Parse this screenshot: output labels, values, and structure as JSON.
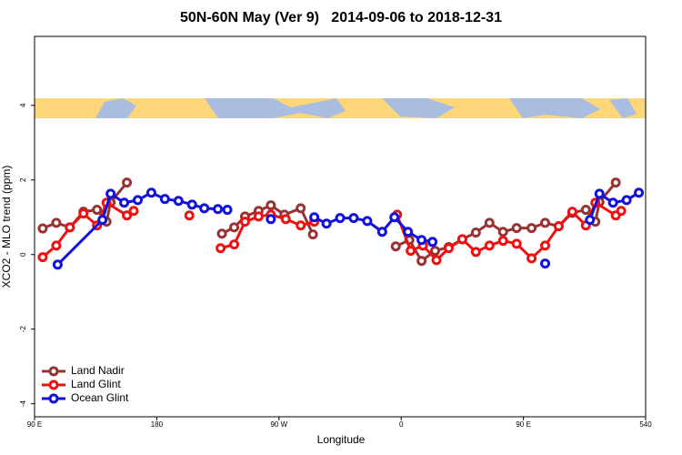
{
  "chart_data": {
    "type": "line",
    "title": "50N-60N May (Ver 9)   2014-09-06 to 2018-12-31",
    "x_label": "Longitude",
    "y_label": "XCO2 - MLO trend (ppm)",
    "xlim": [
      90,
      540
    ],
    "xticks": [
      {
        "value": 90,
        "label": "90 E"
      },
      180,
      {
        "value": 270,
        "label": "90 W"
      },
      {
        "value": 360,
        "label": "0"
      },
      {
        "value": 450,
        "label": "90 E"
      },
      540
    ],
    "ylim": [
      -4.35,
      5.85
    ],
    "yticks": [
      -4,
      -2,
      0,
      2,
      4
    ],
    "legend": "bottom-left",
    "series": [
      {
        "name": "Land Nadir",
        "color": "#993333",
        "x": [
          96,
          106,
          116,
          126,
          136,
          143,
          146,
          158,
          null,
          228,
          237,
          245,
          255,
          264,
          274,
          286,
          295,
          null,
          356,
          366,
          375,
          385,
          395,
          405,
          415,
          425,
          435,
          445,
          456,
          466,
          476,
          486,
          496,
          503,
          506,
          518
        ],
        "values": [
          0.7,
          0.85,
          0.73,
          1.15,
          1.2,
          0.88,
          1.4,
          1.93,
          null,
          0.56,
          0.73,
          1.02,
          1.17,
          1.32,
          1.07,
          1.24,
          0.54,
          null,
          0.22,
          0.39,
          -0.17,
          0.1,
          0.2,
          0.41,
          0.59,
          0.85,
          0.61,
          0.71,
          0.71,
          0.85,
          0.76,
          1.12,
          1.2,
          0.88,
          1.41,
          1.93
        ]
      },
      {
        "name": "Land Glint",
        "color": "#ee1111",
        "x": [
          96,
          106,
          116,
          126,
          136,
          143,
          158,
          163,
          null,
          204,
          null,
          227,
          237,
          245,
          255,
          264,
          275,
          286,
          296,
          null,
          357,
          367,
          376,
          386,
          395,
          405,
          415,
          425,
          435,
          445,
          456,
          466,
          476,
          486,
          496,
          503,
          518,
          522
        ],
        "values": [
          -0.07,
          0.24,
          0.73,
          1.1,
          0.78,
          1.39,
          1.05,
          1.17,
          null,
          1.05,
          null,
          0.17,
          0.27,
          0.88,
          1.02,
          1.07,
          0.95,
          0.78,
          0.88,
          null,
          1.07,
          0.1,
          0.24,
          -0.15,
          0.17,
          0.41,
          0.07,
          0.24,
          0.37,
          0.29,
          -0.1,
          0.24,
          0.76,
          1.15,
          0.78,
          1.39,
          1.05,
          1.17
        ]
      },
      {
        "name": "Ocean Glint",
        "color": "#1111dd",
        "x": [
          107,
          140,
          146,
          156,
          166,
          176,
          186,
          196,
          206,
          215,
          225,
          232,
          null,
          264,
          null,
          296,
          305,
          315,
          325,
          335,
          346,
          355,
          365,
          375,
          383,
          null,
          466,
          null,
          499,
          506,
          516,
          526,
          535
        ],
        "values": [
          -0.27,
          0.93,
          1.63,
          1.39,
          1.46,
          1.66,
          1.49,
          1.44,
          1.34,
          1.24,
          1.22,
          1.2,
          null,
          0.95,
          null,
          1.0,
          0.83,
          0.98,
          0.98,
          0.9,
          0.61,
          1.0,
          0.61,
          0.39,
          0.34,
          null,
          -0.24,
          null,
          0.93,
          1.63,
          1.39,
          1.46,
          1.66
        ]
      }
    ]
  }
}
